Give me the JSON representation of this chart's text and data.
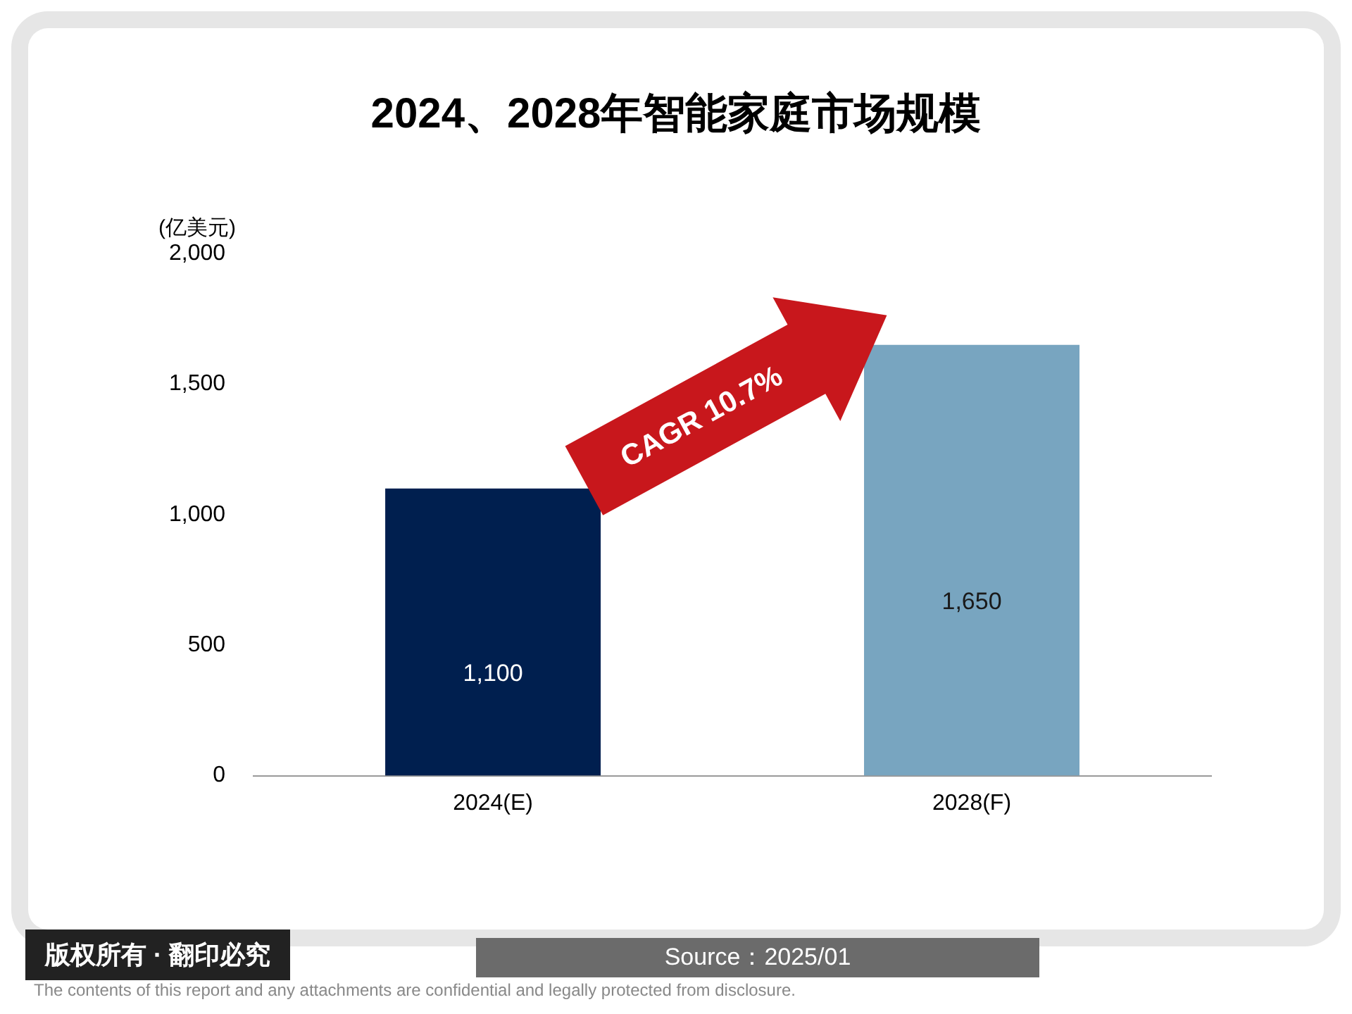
{
  "chart_data": {
    "type": "bar",
    "title": "2024、2028年智能家庭市场规模",
    "ylabel": "(亿美元)",
    "categories": [
      "2024(E)",
      "2028(F)"
    ],
    "values": [
      1100,
      1650
    ],
    "colors": [
      "#001f4f",
      "#78a5c0"
    ],
    "ylim": [
      0,
      2000
    ],
    "yticks": [
      0,
      500,
      {
        "value": 1000,
        "label": "1,000"
      },
      {
        "value": 1500,
        "label": "1,500"
      },
      {
        "value": 2000,
        "label": "2,000"
      }
    ],
    "grid": false,
    "legend": false,
    "value_labels": [
      "1,100",
      "1,650"
    ],
    "annotations": [
      "CAGR 10.7%",
      "Source：2025/01",
      "版权所有 · 翻印必究",
      "The contents of this report and any attachments are confidential and legally protected from disclosure."
    ]
  }
}
